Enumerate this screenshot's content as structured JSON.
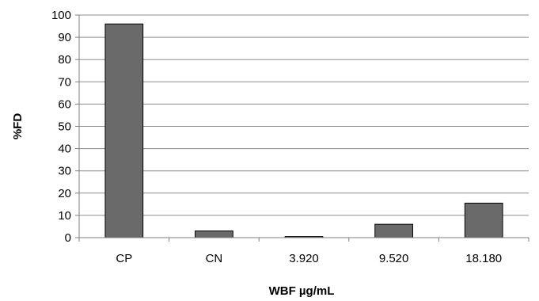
{
  "chart_data": {
    "type": "bar",
    "categories": [
      "CP",
      "CN",
      "3.920",
      "9.520",
      "18.180"
    ],
    "values": [
      96,
      3,
      0.5,
      6,
      15.5
    ],
    "title": "",
    "xlabel": "WBF µg/mL",
    "ylabel": "%FD",
    "ylim": [
      0,
      100
    ],
    "yticks": [
      0,
      10,
      20,
      30,
      40,
      50,
      60,
      70,
      80,
      90,
      100
    ],
    "grid": true,
    "legend": "none",
    "bar_color": "#6a6a6a"
  }
}
